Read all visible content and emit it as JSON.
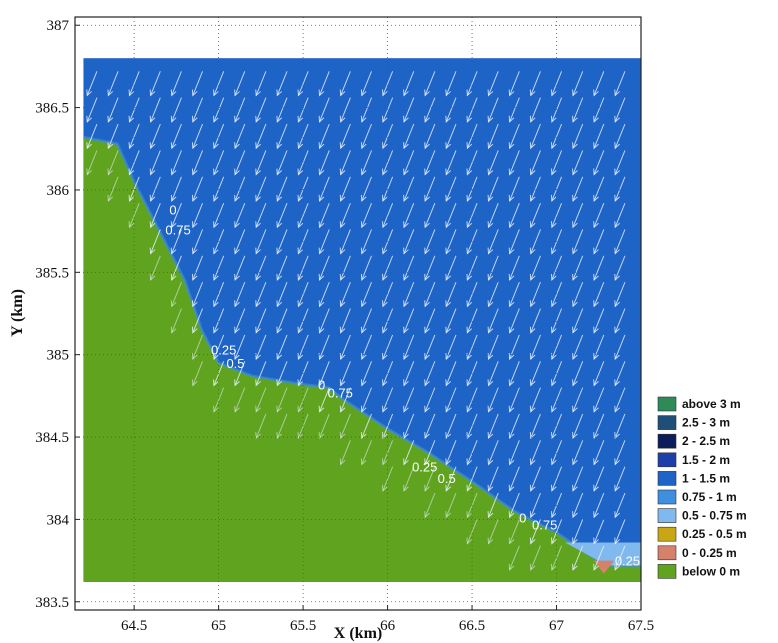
{
  "chart_data": {
    "type": "heatmap",
    "title": "",
    "xlabel": "X (km)",
    "ylabel": "Y (km)",
    "xlim": [
      64.15,
      67.5
    ],
    "ylim": [
      383.45,
      387.05
    ],
    "x_ticks": [
      "64.5",
      "65",
      "65.5",
      "66",
      "66.5",
      "67",
      "67.5"
    ],
    "y_ticks": [
      "383.5",
      "384",
      "384.5",
      "385",
      "385.5",
      "386",
      "386.5",
      "387"
    ],
    "grid": true,
    "legend_position": "right",
    "legend": [
      {
        "label": "above 3 m",
        "color": "#2e8b57"
      },
      {
        "label": "2.5 - 3 m",
        "color": "#1f4e79"
      },
      {
        "label": "2 - 2.5 m",
        "color": "#0b1d5a"
      },
      {
        "label": "1.5 - 2 m",
        "color": "#1c3faa"
      },
      {
        "label": "1 - 1.5 m",
        "color": "#1e63c6"
      },
      {
        "label": "0.75 - 1 m",
        "color": "#3f8fe0"
      },
      {
        "label": "0.5 - 0.75 m",
        "color": "#7fb9ee"
      },
      {
        "label": "0.25 - 0.5 m",
        "color": "#c9a614"
      },
      {
        "label": "0 - 0.25 m",
        "color": "#d4826a"
      },
      {
        "label": "below 0 m",
        "color": "#5fa31f"
      }
    ],
    "domain_extent": {
      "x": [
        64.2,
        67.5
      ],
      "y": [
        383.62,
        386.8
      ]
    },
    "shoreline": [
      {
        "x": 64.2,
        "y": 386.32
      },
      {
        "x": 64.4,
        "y": 386.28
      },
      {
        "x": 64.5,
        "y": 386.05
      },
      {
        "x": 64.65,
        "y": 385.75
      },
      {
        "x": 64.8,
        "y": 385.45
      },
      {
        "x": 64.9,
        "y": 385.15
      },
      {
        "x": 65.0,
        "y": 384.95
      },
      {
        "x": 65.2,
        "y": 384.87
      },
      {
        "x": 65.5,
        "y": 384.82
      },
      {
        "x": 65.65,
        "y": 384.8
      },
      {
        "x": 65.75,
        "y": 384.72
      },
      {
        "x": 66.0,
        "y": 384.55
      },
      {
        "x": 66.25,
        "y": 384.4
      },
      {
        "x": 66.5,
        "y": 384.23
      },
      {
        "x": 66.75,
        "y": 384.05
      },
      {
        "x": 67.0,
        "y": 383.92
      },
      {
        "x": 67.2,
        "y": 383.78
      },
      {
        "x": 67.3,
        "y": 383.72
      },
      {
        "x": 67.5,
        "y": 383.72
      }
    ],
    "contour_labels": [
      {
        "text": "0",
        "x": 64.73,
        "y": 385.85
      },
      {
        "text": "0.75",
        "x": 64.76,
        "y": 385.73
      },
      {
        "text": "0.25",
        "x": 65.03,
        "y": 385.0
      },
      {
        "text": "0.5",
        "x": 65.1,
        "y": 384.92
      },
      {
        "text": "0",
        "x": 65.61,
        "y": 384.79
      },
      {
        "text": "0.75",
        "x": 65.72,
        "y": 384.74
      },
      {
        "text": "0.25",
        "x": 66.22,
        "y": 384.29
      },
      {
        "text": "0.5",
        "x": 66.35,
        "y": 384.22
      },
      {
        "text": "0",
        "x": 66.8,
        "y": 383.98
      },
      {
        "text": "0.75",
        "x": 66.93,
        "y": 383.94
      },
      {
        "text": "0.25",
        "x": 67.42,
        "y": 383.72
      }
    ],
    "wave_direction": "south-southwest"
  }
}
